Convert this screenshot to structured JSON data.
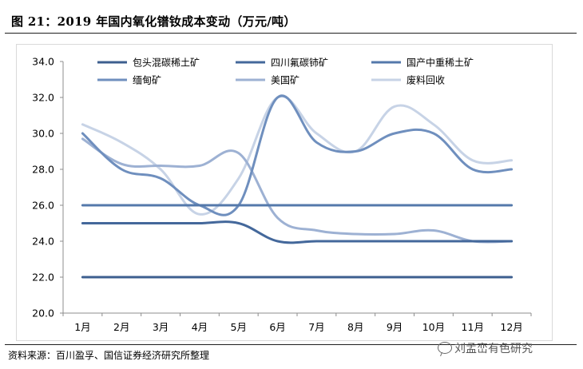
{
  "title": "图 21：2019 年国内氧化镨钕成本变动（万元/吨）",
  "source": "资料来源：百川盈孚、国信证券经济研究所整理",
  "watermark": "刘孟峦有色研究",
  "chart_data": {
    "type": "line",
    "categories": [
      "1月",
      "2月",
      "3月",
      "4月",
      "5月",
      "6月",
      "7月",
      "8月",
      "9月",
      "10月",
      "11月",
      "12月"
    ],
    "ylim": [
      20.0,
      34.0
    ],
    "yticks": [
      "20.0",
      "22.0",
      "24.0",
      "26.0",
      "28.0",
      "30.0",
      "32.0",
      "34.0"
    ],
    "legend_position": "top",
    "grid": false,
    "series": [
      {
        "name": "包头混碳稀土矿",
        "color": "#3d5f8f",
        "values": [
          22.0,
          22.0,
          22.0,
          22.0,
          22.0,
          22.0,
          22.0,
          22.0,
          22.0,
          22.0,
          22.0,
          22.0
        ]
      },
      {
        "name": "四川氟碳铈矿",
        "color": "#44689b",
        "values": [
          25.0,
          25.0,
          25.0,
          25.0,
          25.0,
          24.0,
          24.0,
          24.0,
          24.0,
          24.0,
          24.0,
          24.0
        ]
      },
      {
        "name": "国产中重稀土矿",
        "color": "#5479ab",
        "values": [
          26.0,
          26.0,
          26.0,
          26.0,
          26.0,
          26.0,
          26.0,
          26.0,
          26.0,
          26.0,
          26.0,
          26.0
        ]
      },
      {
        "name": "缅甸矿",
        "color": "#6f8fbe",
        "values": [
          30.0,
          28.0,
          27.5,
          26.0,
          26.0,
          32.0,
          29.5,
          29.0,
          30.0,
          30.0,
          28.0,
          28.0
        ]
      },
      {
        "name": "美国矿",
        "color": "#9db1d3",
        "values": [
          29.7,
          28.3,
          28.2,
          28.2,
          28.9,
          25.3,
          24.6,
          24.4,
          24.4,
          24.6,
          24.0,
          24.0
        ]
      },
      {
        "name": "废料回收",
        "color": "#c7d3e6",
        "values": [
          30.5,
          29.5,
          28.0,
          25.5,
          27.5,
          32.0,
          30.0,
          29.0,
          31.5,
          30.5,
          28.5,
          28.5
        ]
      }
    ]
  }
}
